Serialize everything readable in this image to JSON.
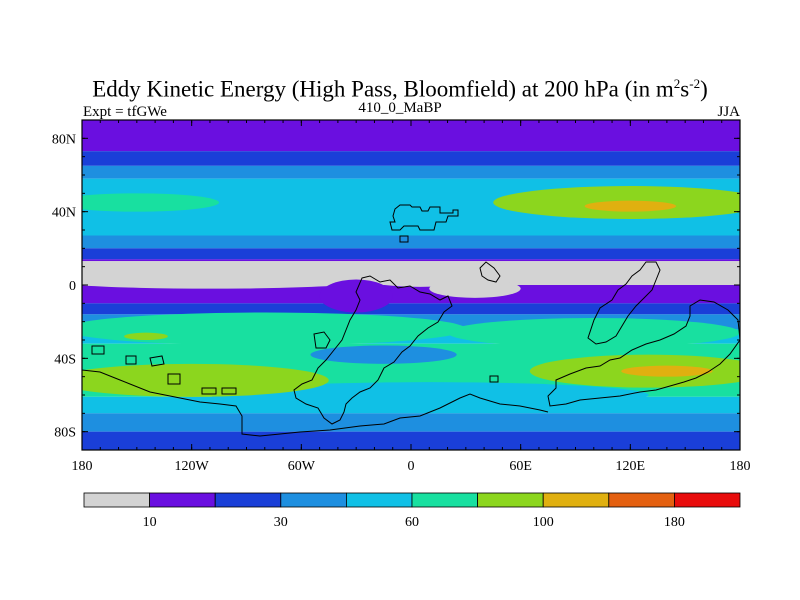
{
  "title": {
    "main": "Eddy Kinetic Energy (High Pass, Bloomfield) at 200 hPa (in m",
    "sup1": "2",
    "mid": "s",
    "sup2": "-2",
    "close": ")"
  },
  "subtitle": "410_0_MaBP",
  "left_label": "Expt = tfGWe",
  "right_label": "JJA",
  "chart_data": {
    "type": "heatmap",
    "description_unit": "m^2 s^-2",
    "x_range": [
      -180,
      180
    ],
    "y_range": [
      -90,
      90
    ],
    "x_ticks": [
      {
        "value": -180,
        "label": "180"
      },
      {
        "value": -120,
        "label": "120W"
      },
      {
        "value": -60,
        "label": "60W"
      },
      {
        "value": 0,
        "label": "0"
      },
      {
        "value": 60,
        "label": "60E"
      },
      {
        "value": 120,
        "label": "120E"
      },
      {
        "value": 180,
        "label": "180"
      }
    ],
    "y_ticks": [
      {
        "value": 80,
        "label": "80N"
      },
      {
        "value": 40,
        "label": "40N"
      },
      {
        "value": 0,
        "label": "0"
      },
      {
        "value": -40,
        "label": "40S"
      },
      {
        "value": -80,
        "label": "80S"
      }
    ],
    "colorbar": {
      "colors": [
        "#d3d3d3",
        "#6a0fe0",
        "#1a3fd8",
        "#1e8fe0",
        "#10c0e6",
        "#18e0a0",
        "#8cd61e",
        "#e0b010",
        "#e46010",
        "#e80c0c"
      ],
      "labels": [
        {
          "boundary": 1,
          "text": "10"
        },
        {
          "boundary": 3,
          "text": "30"
        },
        {
          "boundary": 5,
          "text": "60"
        },
        {
          "boundary": 7,
          "text": "100"
        },
        {
          "boundary": 9,
          "text": "180"
        }
      ]
    },
    "zonal_bands": [
      {
        "lat_top": 90,
        "lat_bottom": 73,
        "level": 1
      },
      {
        "lat_top": 73,
        "lat_bottom": 65,
        "level": 2
      },
      {
        "lat_top": 65,
        "lat_bottom": 58,
        "level": 3
      },
      {
        "lat_top": 58,
        "lat_bottom": 27,
        "level": 4
      },
      {
        "lat_top": 27,
        "lat_bottom": 20,
        "level": 3
      },
      {
        "lat_top": 20,
        "lat_bottom": 14,
        "level": 2
      },
      {
        "lat_top": 14,
        "lat_bottom": 13,
        "level": 1
      },
      {
        "lat_top": 13,
        "lat_bottom": 0,
        "level": 0
      },
      {
        "lat_top": 0,
        "lat_bottom": -10,
        "level": 1
      },
      {
        "lat_top": -10,
        "lat_bottom": -16,
        "level": 2
      },
      {
        "lat_top": -16,
        "lat_bottom": -24,
        "level": 3
      },
      {
        "lat_top": -24,
        "lat_bottom": -32,
        "level": 4
      },
      {
        "lat_top": -32,
        "lat_bottom": -61,
        "level": 5
      },
      {
        "lat_top": -61,
        "lat_bottom": -70,
        "level": 4
      },
      {
        "lat_top": -70,
        "lat_bottom": -80,
        "level": 3
      },
      {
        "lat_top": -80,
        "lat_bottom": -90,
        "level": 2
      }
    ],
    "blobs": [
      {
        "lon": -80,
        "lat": -24,
        "rlon": 110,
        "rlat": 9,
        "level": 5
      },
      {
        "lon": 100,
        "lat": -26,
        "rlon": 80,
        "rlat": 8,
        "level": 5
      },
      {
        "lon": 10,
        "lat": -60,
        "rlon": 120,
        "rlat": 7,
        "level": 4
      },
      {
        "lon": -120,
        "lat": -52,
        "rlon": 75,
        "rlat": 9,
        "level": 6
      },
      {
        "lon": 130,
        "lat": -47,
        "rlon": 65,
        "rlat": 9,
        "level": 6
      },
      {
        "lon": 140,
        "lat": -47,
        "rlon": 25,
        "rlat": 3,
        "level": 7
      },
      {
        "lon": -150,
        "lat": 45,
        "rlon": 45,
        "rlat": 5,
        "level": 5
      },
      {
        "lon": 120,
        "lat": 45,
        "rlon": 75,
        "rlat": 9,
        "level": 6
      },
      {
        "lon": 120,
        "lat": 43,
        "rlon": 25,
        "rlat": 3,
        "level": 7
      },
      {
        "lon": -145,
        "lat": -28,
        "rlon": 12,
        "rlat": 2,
        "level": 6
      },
      {
        "lon": -110,
        "lat": 4,
        "rlon": 100,
        "rlat": 6,
        "level": 0
      },
      {
        "lon": 5,
        "lat": 5,
        "rlon": 35,
        "rlat": 6,
        "level": 0
      },
      {
        "lon": 35,
        "lat": -2,
        "rlon": 25,
        "rlat": 5,
        "level": 0
      },
      {
        "lon": -30,
        "lat": -6,
        "rlon": 20,
        "rlat": 9,
        "level": 1
      },
      {
        "lon": -15,
        "lat": -38,
        "rlon": 40,
        "rlat": 5,
        "level": 3
      }
    ]
  }
}
